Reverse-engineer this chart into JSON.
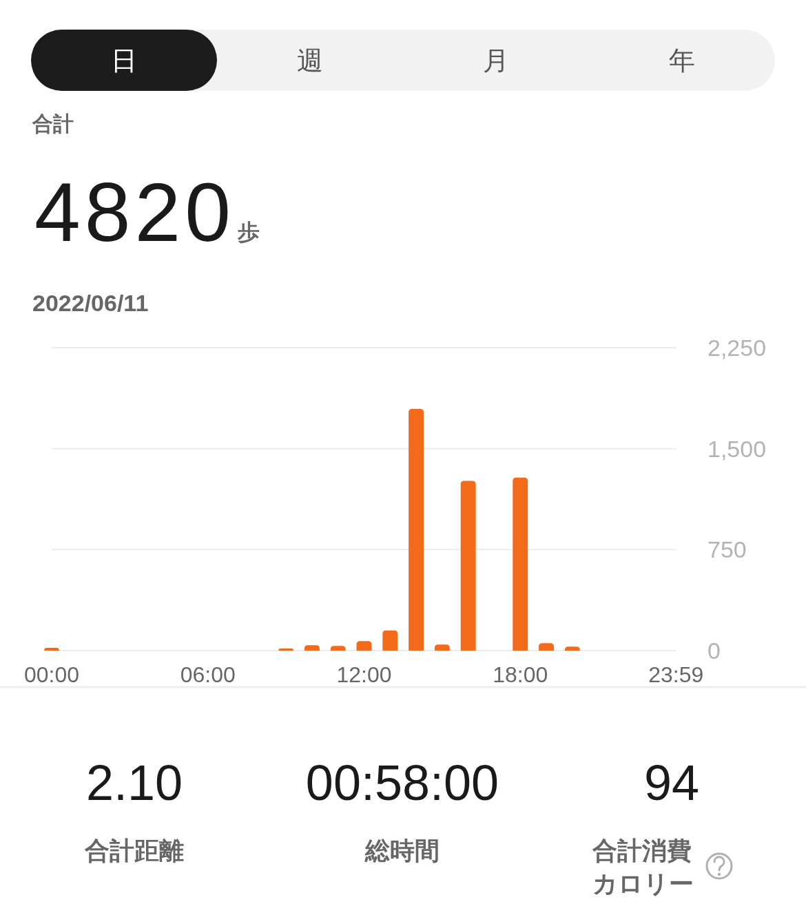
{
  "chart_data": {
    "type": "bar",
    "title": "合計",
    "subtitle": "2022/06/11",
    "x": [
      0,
      9,
      10,
      11,
      12,
      13,
      14,
      15,
      16,
      18,
      19,
      20
    ],
    "values": [
      20,
      15,
      40,
      35,
      70,
      150,
      1795,
      45,
      1260,
      1285,
      55,
      30
    ],
    "color": "#f36a1b",
    "xlim": [
      0,
      24
    ],
    "xticks": [
      {
        "value": 0,
        "label": "00:00"
      },
      {
        "value": 6,
        "label": "06:00"
      },
      {
        "value": 12,
        "label": "12:00"
      },
      {
        "value": 18,
        "label": "18:00"
      },
      {
        "value": 23.98,
        "label": "23:59"
      }
    ],
    "ylim": [
      0,
      2250
    ],
    "yticks": [
      0,
      750,
      {
        "value": 1500,
        "label": "1,500"
      },
      {
        "value": 2250,
        "label": "2,250"
      }
    ],
    "grid": "y",
    "annotations": [
      "日",
      "週",
      "月",
      "年",
      "4820",
      "歩",
      "2.10",
      "合計距離",
      "00:58:00",
      "総時間",
      "94",
      "合計消費カロリー"
    ]
  }
}
